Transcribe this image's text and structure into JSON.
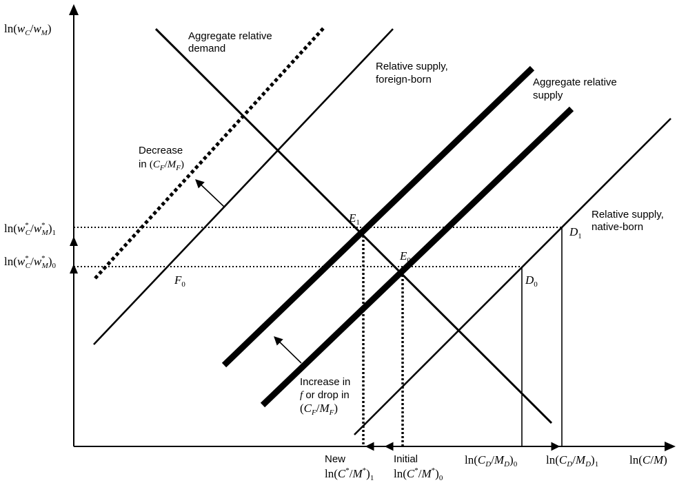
{
  "axes": {
    "y_label": "ln(w_C / w_M)",
    "x_label": "ln(C/M)",
    "y_ticks": [
      {
        "id": "ystar1",
        "label": "ln(w*_C/w*_M)_1"
      },
      {
        "id": "ystar0",
        "label": "ln(w*_C/w*_M)_0"
      }
    ],
    "x_ticks": [
      {
        "id": "new",
        "line1": "New",
        "line2": "ln(C*/M*)_1"
      },
      {
        "id": "initial",
        "line1": "Initial",
        "line2": "ln(C*/M*)_0"
      },
      {
        "id": "cd0",
        "label": "ln(C_D/M_D)_0"
      },
      {
        "id": "cd1",
        "label": "ln(C_D/M_D)_1"
      }
    ]
  },
  "curves": {
    "aggregate_demand": {
      "line1": "Aggregate relative",
      "line2": "demand"
    },
    "supply_foreign": {
      "line1": "Relative supply,",
      "line2": "foreign-born"
    },
    "supply_aggregate": {
      "line1": "Aggregate relative",
      "line2": "supply"
    },
    "supply_native": {
      "line1": "Relative supply,",
      "line2": "native-born"
    }
  },
  "annotations": {
    "decrease": {
      "line1": "Decrease",
      "line2_prefix": "in ",
      "line2_math": "(C_F/M_F)"
    },
    "increase": {
      "line1": "Increase in",
      "line2_italic": "f",
      "line2_rest": " or drop in",
      "line3_math": "(C_F/M_F)"
    }
  },
  "points": {
    "E1": "E_1",
    "E0": "E_0",
    "D1": "D_1",
    "D0": "D_0",
    "F0": "F_0"
  }
}
